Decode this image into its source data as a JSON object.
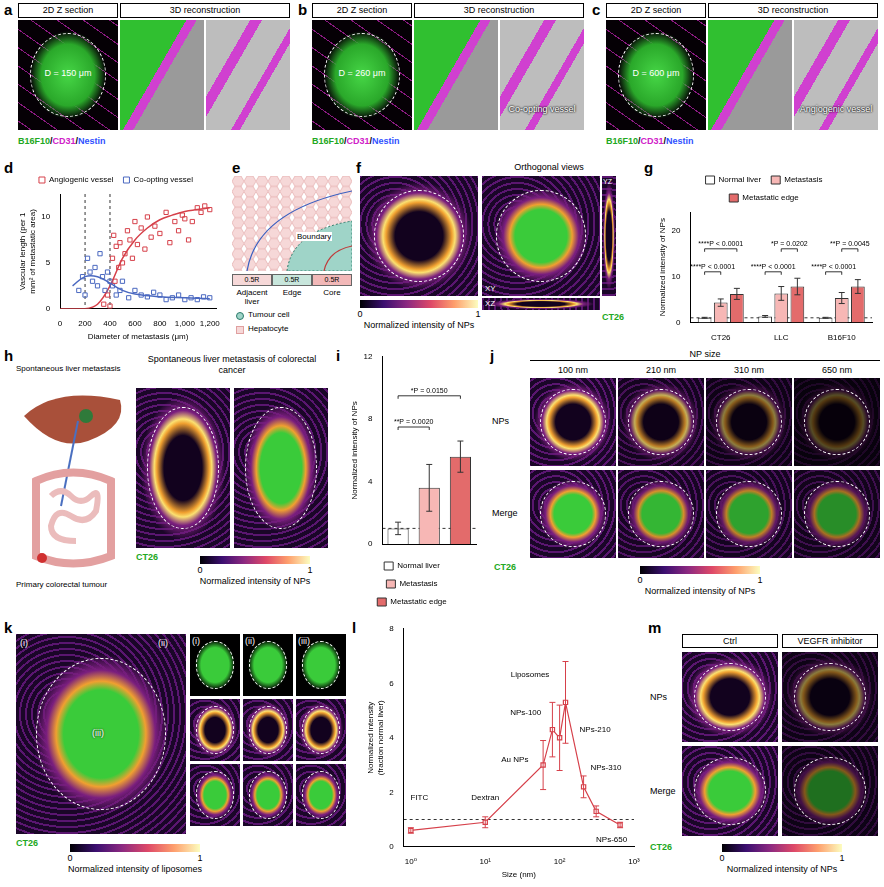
{
  "figure": {
    "a": {
      "letter": "a",
      "heads": [
        "2D Z section",
        "3D reconstruction"
      ],
      "diameter": "D = 150 μm",
      "stain": "B16F10/CD31/Nestin"
    },
    "b": {
      "letter": "b",
      "heads": [
        "2D Z section",
        "3D reconstruction"
      ],
      "diameter": "D = 260 μm",
      "vessel": "Co-opting vessel",
      "stain": "B16F10/CD31/Nestin"
    },
    "c": {
      "letter": "c",
      "heads": [
        "2D Z section",
        "3D reconstruction"
      ],
      "diameter": "D = 600 μm",
      "vessel": "Angiogenic vessel",
      "stain": "B16F10/CD31/Nestin"
    },
    "e": {
      "letter": "e",
      "boundary": "Boundary",
      "zones": [
        "Adjacent liver",
        "Edge",
        "Core"
      ],
      "widths": [
        "0.5R",
        "0.5R",
        "0.5R"
      ],
      "keys": [
        "Tumour cell",
        "Hepatocyte"
      ]
    },
    "f": {
      "letter": "f",
      "head": "Orthogonal views",
      "views": [
        "XY",
        "XZ",
        "YZ"
      ],
      "stain": "CT26",
      "colorbar": {
        "label": "Normalized intensity of NPs",
        "range": [
          0,
          1
        ],
        "ticks": [
          0,
          1
        ]
      }
    },
    "h": {
      "letter": "h",
      "illustration": [
        "Spontaneous liver metastasis",
        "Primary colorectal tumour"
      ],
      "head": "Spontaneous liver metastasis of colorectal cancer",
      "stain": "CT26",
      "colorbar": {
        "label": "Normalized intensity of NPs",
        "range": [
          0,
          1
        ],
        "ticks": [
          0,
          1
        ]
      }
    },
    "j": {
      "letter": "j",
      "head": "NP size",
      "columns": [
        "100 nm",
        "210 nm",
        "310 nm",
        "650 nm"
      ],
      "rows": [
        "NPs",
        "Merge"
      ],
      "stain": "CT26",
      "colorbar": {
        "label": "Normalized intensity of NPs",
        "range": [
          0,
          1
        ],
        "ticks": [
          0,
          1
        ]
      }
    },
    "k": {
      "letter": "k",
      "insets": [
        "(i)",
        "(ii)",
        "(iii)"
      ],
      "stain": "CT26",
      "colorbar": {
        "label": "Normalized intensity of liposomes",
        "range": [
          0,
          1
        ],
        "ticks": [
          0,
          1
        ]
      }
    },
    "m": {
      "letter": "m",
      "columns": [
        "Ctrl",
        "VEGFR inhibitor"
      ],
      "rows": [
        "NPs",
        "Merge"
      ],
      "stain": "CT26",
      "colorbar": {
        "label": "Normalized intensity of NPs",
        "range": [
          0,
          1
        ],
        "ticks": [
          0,
          1
        ]
      }
    }
  },
  "chart_data": [
    {
      "letter": "d",
      "type": "scatter",
      "x_label": "Diameter of metastasis (μm)",
      "y_label": "Vascular length (per 1 mm² of metastatic area)",
      "xlim": [
        0,
        1250
      ],
      "xticks": [
        0,
        200,
        400,
        600,
        800,
        {
          "value": 1000,
          "label": "1,000"
        },
        {
          "value": 1200,
          "label": "1,200"
        }
      ],
      "ylim": [
        0,
        12.5
      ],
      "yticks": [
        0,
        5,
        10
      ],
      "grid": false,
      "legend": "top",
      "marker": "square",
      "series": [
        {
          "name": "Angiogenic vessel",
          "color": "#d6404a",
          "x": [
            350,
            380,
            400,
            420,
            430,
            440,
            450,
            470,
            480,
            500,
            520,
            540,
            560,
            580,
            600,
            620,
            650,
            680,
            700,
            730,
            760,
            800,
            850,
            880,
            920,
            950,
            980,
            1000,
            1030,
            1060,
            1100,
            1130,
            1160,
            1200
          ],
          "values": [
            0.5,
            1.5,
            0.3,
            5.5,
            8,
            3,
            6.8,
            4.5,
            7.2,
            5,
            6,
            8.5,
            7.5,
            5.5,
            9.5,
            7,
            8.8,
            6.5,
            10,
            7.8,
            9,
            8.2,
            10.5,
            7.2,
            9.5,
            8.5,
            10.2,
            9.8,
            7.5,
            9.5,
            11,
            10.5,
            11.2,
            10.8
          ]
        },
        {
          "name": "Co-opting vessel",
          "color": "#4a68c0",
          "x": [
            150,
            180,
            200,
            220,
            240,
            260,
            280,
            300,
            320,
            340,
            360,
            380,
            400,
            420,
            450,
            480,
            500,
            550,
            600,
            650,
            700,
            750,
            800,
            850,
            900,
            950,
            1000,
            1050,
            1100,
            1150,
            1200
          ],
          "values": [
            2,
            3.5,
            1.5,
            5.5,
            4,
            3,
            4.5,
            2.5,
            6,
            3.5,
            2,
            4,
            3,
            2.5,
            1.5,
            2,
            3,
            1.2,
            2,
            1.5,
            1.3,
            1.8,
            1.5,
            1,
            1.2,
            1.5,
            1,
            1.2,
            1,
            1.3,
            1.2
          ]
        }
      ],
      "fits": [
        {
          "color": "#d6404a",
          "x": [
            0,
            200,
            300,
            400,
            500,
            600,
            700,
            800,
            900,
            1000,
            1100,
            1200
          ],
          "values": [
            0,
            0,
            0.5,
            2.5,
            5.5,
            7.5,
            8.8,
            9.7,
            10.2,
            10.6,
            10.8,
            11
          ]
        },
        {
          "color": "#4a68c0",
          "x": [
            100,
            200,
            300,
            400,
            500,
            600,
            800,
            1000,
            1200
          ],
          "values": [
            2.5,
            3.5,
            3.5,
            2.8,
            2,
            1.6,
            1.3,
            1.2,
            1.1
          ]
        }
      ],
      "reference_x": [
        200,
        400
      ]
    },
    {
      "letter": "g",
      "type": "bar",
      "y_label": "Normalized intensity of NPs",
      "categories": [
        "CT26",
        "LLC",
        "B16F10"
      ],
      "ylim": [
        0,
        24
      ],
      "yticks": [
        0,
        10,
        20
      ],
      "grid": false,
      "legend": "top",
      "series": [
        {
          "name": "Normal liver",
          "color": "#ffffff",
          "values": [
            1.0,
            1.3,
            1.0
          ],
          "errors": [
            0.1,
            0.2,
            0.1
          ]
        },
        {
          "name": "Metastasis",
          "color": "#f7b7b5",
          "values": [
            4.3,
            6.3,
            5.3
          ],
          "errors": [
            0.8,
            1.5,
            1.2
          ]
        },
        {
          "name": "Metastatic edge",
          "color": "#e36b6b",
          "values": [
            6.2,
            7.8,
            7.8
          ],
          "errors": [
            1.2,
            1.8,
            1.5
          ]
        }
      ],
      "reference_y": 1,
      "annotations": [
        {
          "category": "CT26",
          "from": "Normal liver",
          "to": "Metastasis",
          "y": 11,
          "text": "****P < 0.0001"
        },
        {
          "category": "CT26",
          "from": "Normal liver",
          "to": "Metastatic edge",
          "y": 16,
          "text": "****P < 0.0001"
        },
        {
          "category": "LLC",
          "from": "Normal liver",
          "to": "Metastasis",
          "y": 11,
          "text": "****P < 0.0001"
        },
        {
          "category": "LLC",
          "from": "Metastasis",
          "to": "Metastatic edge",
          "y": 16,
          "text": "*P = 0.0202"
        },
        {
          "category": "B16F10",
          "from": "Normal liver",
          "to": "Metastasis",
          "y": 11,
          "text": "****P < 0.0001"
        },
        {
          "category": "B16F10",
          "from": "Metastasis",
          "to": "Metastatic edge",
          "y": 16,
          "text": "**P = 0.0045"
        }
      ]
    },
    {
      "letter": "i",
      "type": "bar",
      "y_label": "Normalized intensity of NPs",
      "categories": [
        "Normal liver",
        "Metastasis",
        "Metastatic edge"
      ],
      "values": [
        1.0,
        3.6,
        5.6
      ],
      "errors": [
        0.4,
        1.5,
        1.0
      ],
      "colors": [
        "#ffffff",
        "#f7b7b5",
        "#e36b6b"
      ],
      "ylim": [
        0,
        12
      ],
      "yticks": [
        0,
        4,
        8,
        12
      ],
      "grid": false,
      "legend": "bottom",
      "tick_labels": "y",
      "reference_y": 1,
      "annotations": [
        {
          "from": "Normal liver",
          "to": "Metastasis",
          "y": 7.5,
          "text": "**P = 0.0020"
        },
        {
          "from": "Normal liver",
          "to": "Metastatic edge",
          "y": 9.5,
          "text": "*P = 0.0150"
        }
      ]
    },
    {
      "letter": "l",
      "type": "line",
      "x_label": "Size (nm)",
      "y_label": "Normalized intensity (fraction normal liver)",
      "log": "x",
      "xlim": [
        0.8,
        1000
      ],
      "xticks": [
        {
          "value": 1,
          "label": "10⁰"
        },
        {
          "value": 10,
          "label": "10¹"
        },
        {
          "value": 100,
          "label": "10²"
        },
        {
          "value": 1000,
          "label": "10³"
        }
      ],
      "ylim": [
        0,
        8
      ],
      "yticks": [
        0,
        2,
        4,
        6,
        8
      ],
      "grid": false,
      "color": "#d6404a",
      "marker": "square",
      "x": [
        1,
        10,
        60,
        80,
        100,
        120,
        210,
        310,
        650
      ],
      "values": [
        0.6,
        0.9,
        3.0,
        4.3,
        4.0,
        5.3,
        2.2,
        1.3,
        0.8
      ],
      "errors": [
        0.1,
        0.2,
        0.9,
        1.0,
        1.2,
        1.5,
        0.4,
        0.2,
        0.1
      ],
      "reference_y": 1,
      "annotations": [
        {
          "x": 1.3,
          "y": 1.8,
          "text": "FITC"
        },
        {
          "x": 10,
          "y": 1.8,
          "text": "Dextran"
        },
        {
          "x": 25,
          "y": 3.2,
          "text": "Au NPs"
        },
        {
          "x": 40,
          "y": 6.3,
          "text": "Liposomes"
        },
        {
          "x": 35,
          "y": 4.9,
          "text": "NPs-100"
        },
        {
          "x": 300,
          "y": 4.3,
          "text": "NPs-210"
        },
        {
          "x": 420,
          "y": 2.9,
          "text": "NPs-310"
        },
        {
          "x": 500,
          "y": 0.25,
          "text": "NPs-650"
        }
      ]
    }
  ]
}
